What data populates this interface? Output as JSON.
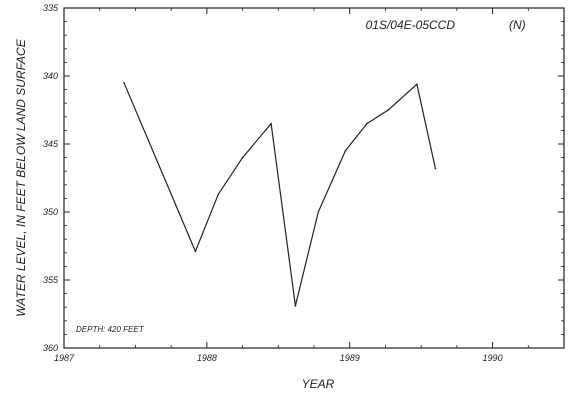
{
  "chart_data": {
    "type": "line",
    "title": "",
    "xlabel": "YEAR",
    "ylabel": "WATER LEVEL, IN FEET BELOW LAND SURFACE",
    "xlim": [
      1987,
      1990.5
    ],
    "ylim": [
      335,
      360
    ],
    "y_inverted": true,
    "x_ticks": [
      1987,
      1988,
      1989,
      1990
    ],
    "x_tick_labels": [
      "1987",
      "1988",
      "1989",
      "1990"
    ],
    "y_ticks": [
      335,
      340,
      345,
      350,
      355,
      360
    ],
    "y_tick_labels": [
      "335",
      "340",
      "345",
      "350",
      "355",
      "360"
    ],
    "annotations": {
      "well_id": "01S/04E-05CCD",
      "well_flag": "(N)",
      "depth_label": "DEPTH: 420 FEET"
    },
    "grid": false,
    "series": [
      {
        "color": "#222222",
        "points": [
          [
            1987.42,
            340.5
          ],
          [
            1987.92,
            352.9
          ],
          [
            1988.08,
            348.7
          ],
          [
            1988.25,
            346.0
          ],
          [
            1988.45,
            343.5
          ],
          [
            1988.62,
            356.9
          ],
          [
            1988.78,
            350.0
          ],
          [
            1988.97,
            345.5
          ],
          [
            1989.12,
            343.5
          ],
          [
            1989.27,
            342.5
          ],
          [
            1989.47,
            340.6
          ],
          [
            1989.6,
            346.8
          ]
        ]
      }
    ]
  }
}
